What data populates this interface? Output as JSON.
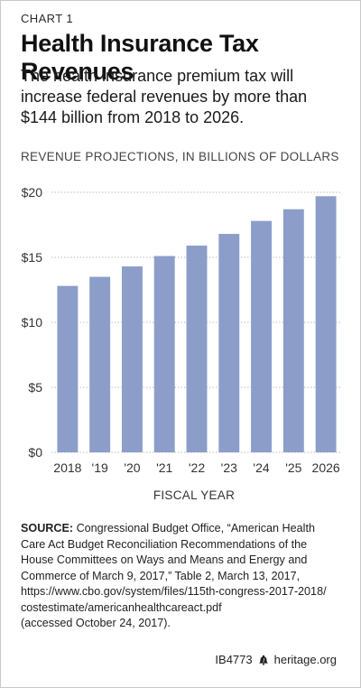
{
  "header": {
    "kicker": "CHART 1",
    "title": "Health Insurance Tax Revenues",
    "subtitle": "The health insurance premium tax will increase federal revenues by more than $144 billion from 2018 to 2026."
  },
  "chart_data": {
    "type": "bar",
    "title": "Health Insurance Tax Revenues",
    "subtitle": "REVENUE PROJECTIONS, IN BILLIONS OF DOLLARS",
    "xlabel": "FISCAL YEAR",
    "ylabel": "",
    "categories": [
      "2018",
      "'19",
      "'20",
      "'21",
      "'22",
      "'23",
      "'24",
      "'25",
      "2026"
    ],
    "values": [
      12.8,
      13.5,
      14.3,
      15.1,
      15.9,
      16.8,
      17.8,
      18.7,
      19.7
    ],
    "ylim": [
      0,
      20
    ],
    "yticks": [
      0,
      5,
      10,
      15,
      20
    ],
    "ytick_labels": [
      "$0",
      "$5",
      "$10",
      "$15",
      "$20"
    ],
    "grid": true,
    "bar_color": "#8c9dc9"
  },
  "source": {
    "label": "SOURCE:",
    "lines": [
      "Congressional Budget Office, “American Health",
      "Care Act Budget Reconciliation Recommendations of the",
      "House Committees on Ways and Means and Energy and",
      "Commerce of March 9, 2017,” Table 2, March 13, 2017,",
      "https://www.cbo.gov/system/files/115th-congress-2017-2018/",
      "costestimate/americanhealthcareact.pdf",
      "(accessed October 24, 2017)."
    ]
  },
  "footer": {
    "report_id": "IB4773",
    "site": "heritage.org",
    "icon": "liberty-bell-icon"
  }
}
